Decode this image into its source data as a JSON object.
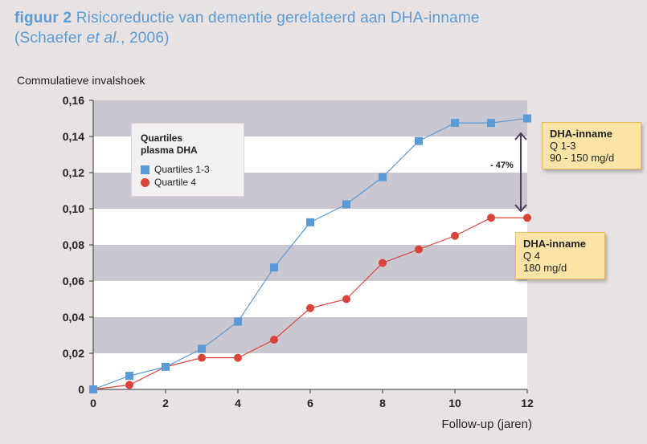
{
  "title": {
    "prefix": "figuur 2",
    "main": " Risicoreductie van dementie gerelateerd aan DHA-inname",
    "line2_start": "(Schaefer ",
    "line2_italic": "et al.",
    "line2_end": ", 2006)"
  },
  "colors": {
    "background": "#e8e2e2",
    "band_gray": "#cbc7d0",
    "band_white": "#ffffff",
    "series_q13": "#5b9bd5",
    "series_q4": "#d9443a",
    "callout_bg": "#fce3a6",
    "title": "#5b9bd5"
  },
  "legend": {
    "title_line1": "Quartiles",
    "title_line2": "plasma DHA",
    "item1": "Quartiles 1-3",
    "item2": "Quartile 4"
  },
  "callouts": {
    "top": {
      "heading": "DHA-inname",
      "line1": "Q 1-3",
      "line2": "90 - 150 mg/d"
    },
    "bottom": {
      "heading": "DHA-inname",
      "line1": "Q 4",
      "line2": "180 mg/d"
    }
  },
  "difference_label": "- 47%",
  "chart_data": {
    "type": "line",
    "xlabel": "Follow-up (jaren)",
    "ylabel": "Commulatieve invalshoek",
    "xlim": [
      0,
      12
    ],
    "ylim": [
      0,
      0.16
    ],
    "x_ticks": [
      "0",
      "2",
      "4",
      "6",
      "8",
      "10",
      "12"
    ],
    "y_ticks": [
      "0",
      "0,02",
      "0,04",
      "0,06",
      "0,08",
      "0,10",
      "0,12",
      "0,14",
      "0,16"
    ],
    "series": [
      {
        "name": "Quartiles 1-3",
        "marker": "square",
        "x": [
          0,
          1,
          2,
          3,
          4,
          5,
          6,
          7,
          8,
          9,
          10,
          11,
          12
        ],
        "values": [
          0,
          0.0075,
          0.0125,
          0.0225,
          0.0375,
          0.0675,
          0.0925,
          0.1025,
          0.1175,
          0.1375,
          0.1475,
          0.1475,
          0.15
        ]
      },
      {
        "name": "Quartile 4",
        "marker": "circle",
        "x": [
          0,
          1,
          2,
          3,
          4,
          5,
          6,
          7,
          8,
          9,
          10,
          11,
          12
        ],
        "values": [
          0,
          0.0025,
          0.0125,
          0.0175,
          0.0175,
          0.0275,
          0.045,
          0.05,
          0.07,
          0.0775,
          0.085,
          0.095,
          0.095
        ]
      }
    ]
  }
}
